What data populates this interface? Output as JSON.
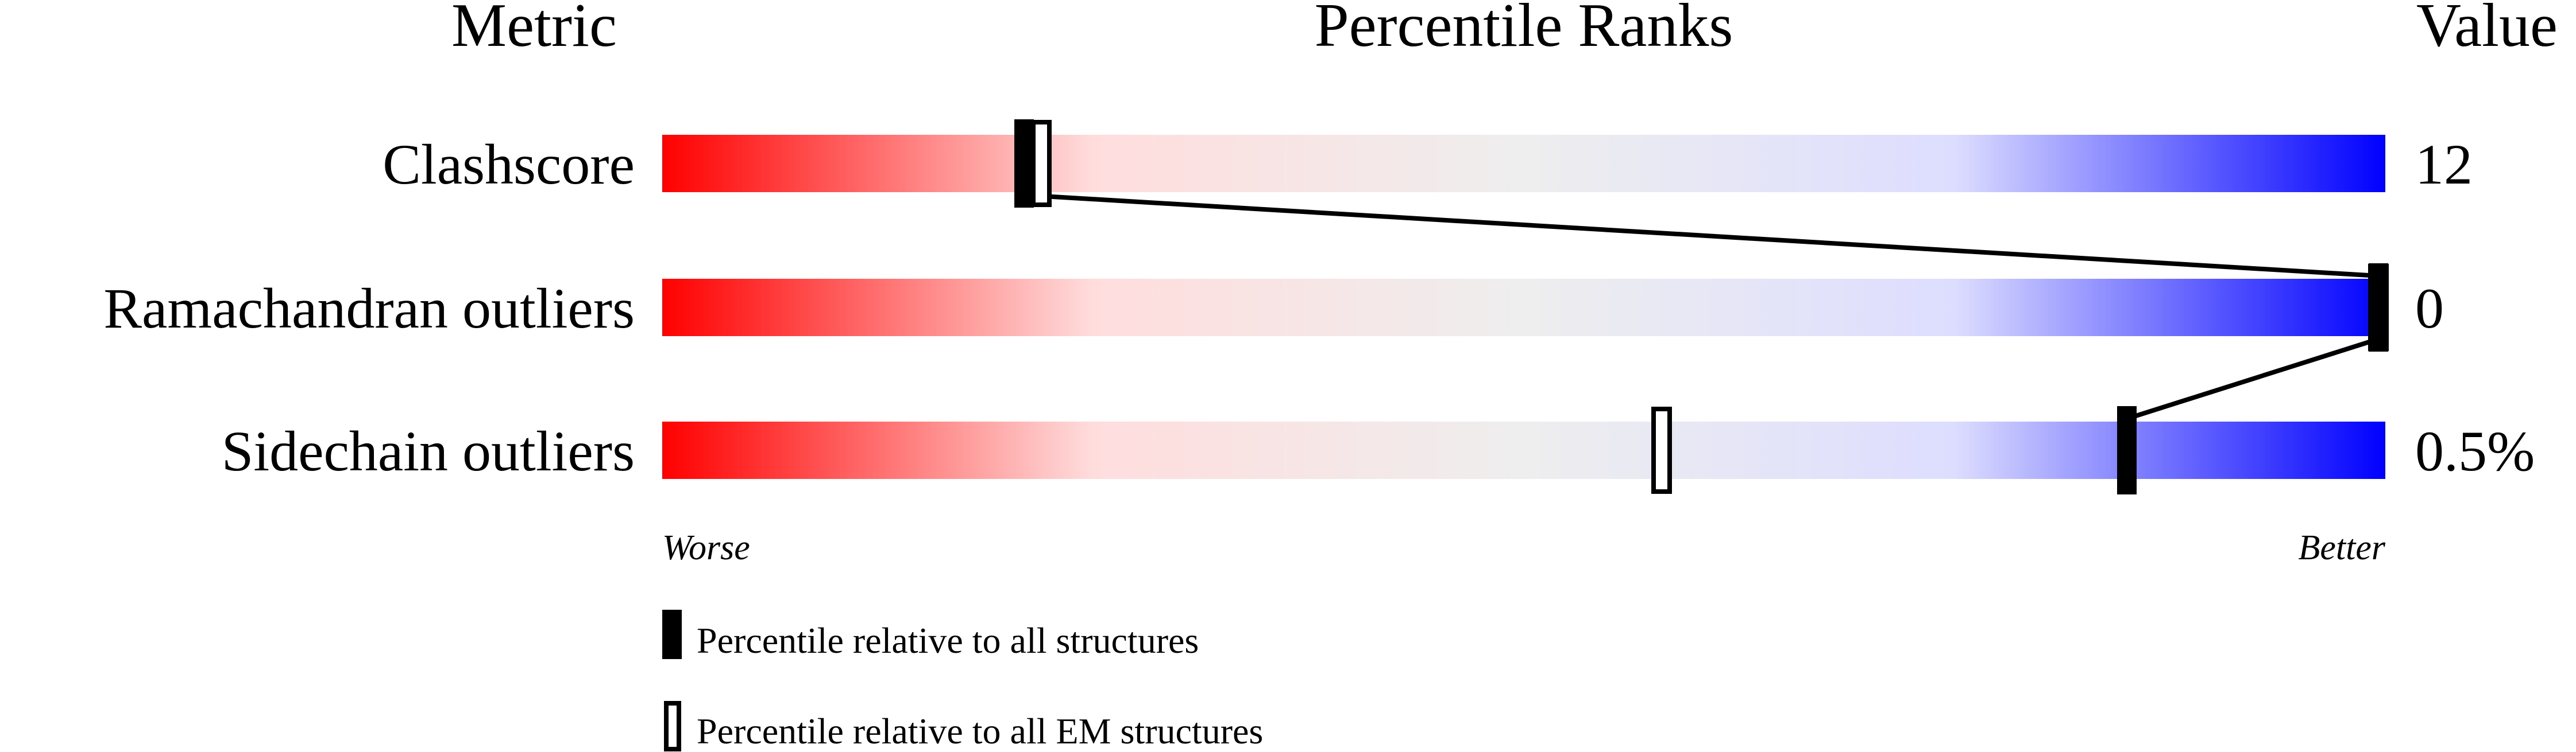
{
  "chart_data": {
    "type": "percentile-bar",
    "headers": {
      "metric": "Metric",
      "ranks": "Percentile Ranks",
      "value": "Value"
    },
    "xlim": [
      0,
      100
    ],
    "axis_labels": {
      "left": "Worse",
      "right": "Better"
    },
    "gradient_colors": [
      "#ff0000",
      "#ffdddd",
      "#eeeeee",
      "#ddddff",
      "#0000ff"
    ],
    "metrics": [
      {
        "name": "Clashscore",
        "value": "12",
        "percentile_all": 21,
        "percentile_em": 22
      },
      {
        "name": "Ramachandran outliers",
        "value": "0",
        "percentile_all": 100,
        "percentile_em": 100
      },
      {
        "name": "Sidechain outliers",
        "value": "0.5%",
        "percentile_all": 85,
        "percentile_em": 58
      }
    ],
    "legend": [
      {
        "marker": "filled",
        "label": "Percentile relative to all structures"
      },
      {
        "marker": "open",
        "label": "Percentile relative to all EM structures"
      }
    ]
  }
}
